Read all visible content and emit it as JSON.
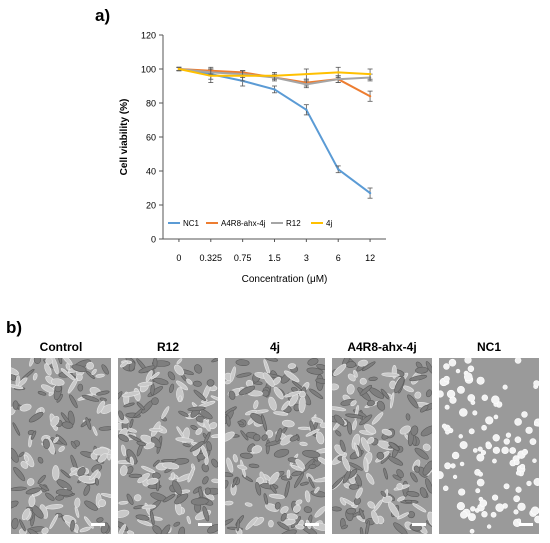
{
  "panel_a_label": "a)",
  "panel_b_label": "b)",
  "chart_data": {
    "type": "line",
    "title": "",
    "xlabel": "Concentration (μM)",
    "ylabel": "Cell viability (%)",
    "categories": [
      "0",
      "0.325",
      "0.75",
      "1.5",
      "3",
      "6",
      "12"
    ],
    "ylim": [
      0,
      120
    ],
    "yticks": [
      0,
      20,
      40,
      60,
      80,
      100,
      120
    ],
    "grid": false,
    "legend_position": "bottom-left",
    "series": [
      {
        "name": "NC1",
        "color": "#5b9bd5",
        "values": [
          100,
          97,
          93,
          88,
          76,
          41,
          27
        ],
        "errors": [
          1,
          3,
          3,
          2,
          3,
          2,
          3
        ]
      },
      {
        "name": "A4R8-ahx-4j",
        "color": "#ed7d31",
        "values": [
          100,
          99,
          98,
          95,
          92,
          94,
          84
        ],
        "errors": [
          1,
          2,
          1,
          1,
          2,
          2,
          3
        ]
      },
      {
        "name": "R12",
        "color": "#a5a5a5",
        "values": [
          100,
          98,
          97,
          95,
          91,
          94,
          95
        ],
        "errors": [
          1,
          2,
          2,
          2,
          2,
          2,
          2
        ]
      },
      {
        "name": "4j",
        "color": "#ffc000",
        "values": [
          100,
          96,
          96,
          96,
          97,
          98,
          97
        ],
        "errors": [
          1,
          4,
          3,
          2,
          3,
          3,
          3
        ]
      }
    ]
  },
  "micrographs": [
    {
      "label": "Control",
      "density": "high",
      "style": "confluent"
    },
    {
      "label": "R12",
      "density": "high",
      "style": "confluent"
    },
    {
      "label": "4j",
      "density": "high",
      "style": "confluent"
    },
    {
      "label": "A4R8-ahx-4j",
      "density": "high",
      "style": "confluent"
    },
    {
      "label": "NC1",
      "density": "low",
      "style": "rounded"
    }
  ]
}
